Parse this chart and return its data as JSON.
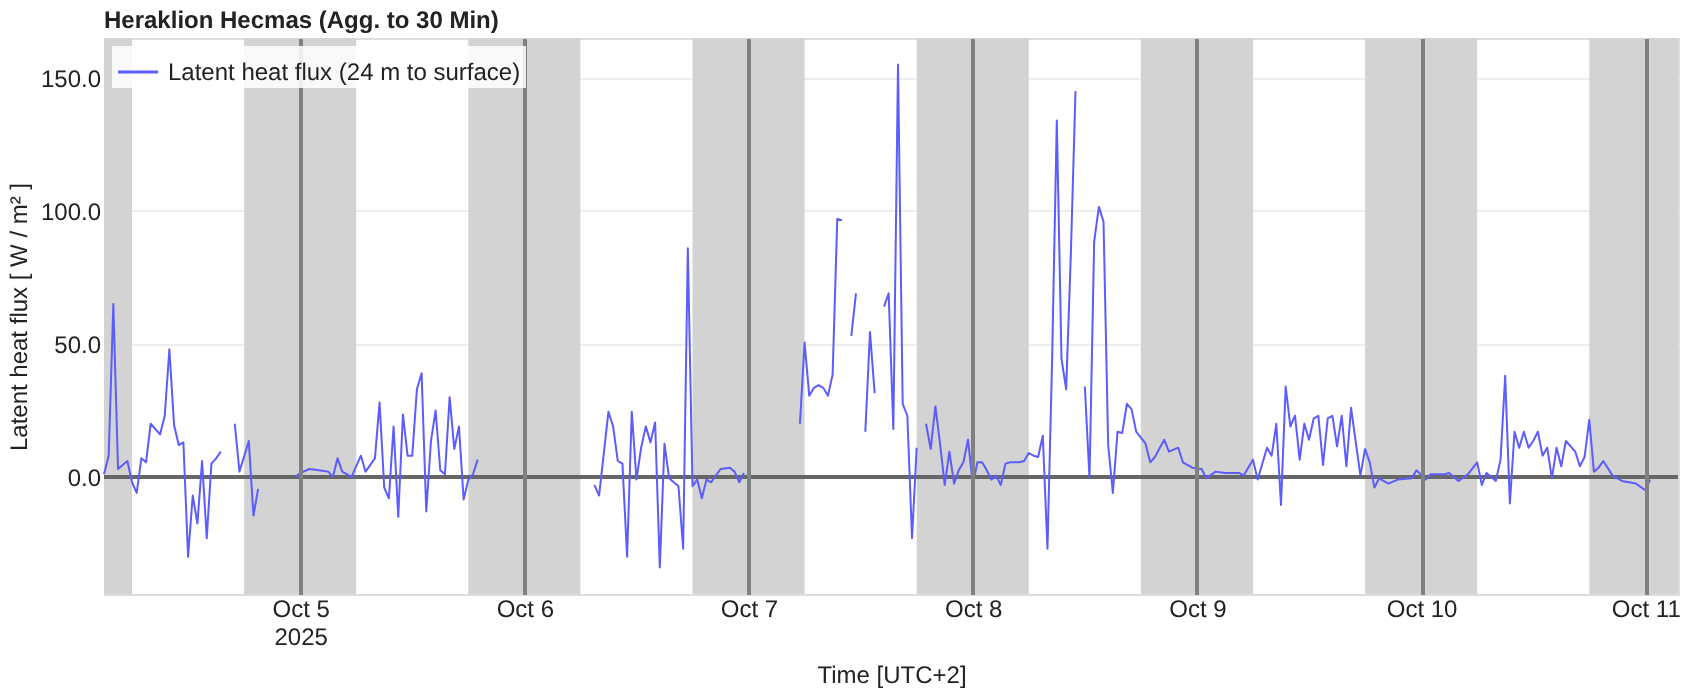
{
  "chart_data": {
    "type": "line",
    "title": "Heraklion Hecmas (Agg. to 30 Min)",
    "xlabel": "Time [UTC+2]",
    "ylabel": "Latent heat flux [ W / m² ]",
    "xlim": [
      "2025-10-04T03:00",
      "2025-10-11T03:30"
    ],
    "xticks": [
      {
        "value": "2025-10-05T00:00",
        "label": "Oct 5\n2025"
      },
      {
        "value": "2025-10-06T00:00",
        "label": "Oct 6"
      },
      {
        "value": "2025-10-07T00:00",
        "label": "Oct 7"
      },
      {
        "value": "2025-10-08T00:00",
        "label": "Oct 8"
      },
      {
        "value": "2025-10-09T00:00",
        "label": "Oct 9"
      },
      {
        "value": "2025-10-10T00:00",
        "label": "Oct 10"
      },
      {
        "value": "2025-10-11T00:00",
        "label": "Oct 11"
      }
    ],
    "ylim": [
      -44,
      165
    ],
    "yticks": [
      {
        "value": 0,
        "label": "0.0"
      },
      {
        "value": 50,
        "label": "50.0"
      },
      {
        "value": 100,
        "label": "100.0"
      },
      {
        "value": 150,
        "label": "150.0"
      }
    ],
    "grid": true,
    "legend": "top left",
    "marker": "none",
    "line_style": "solid",
    "ref_lines": [
      {
        "axis": "y",
        "value": 0,
        "color": "#666666",
        "line_style": "solid"
      }
    ],
    "bands": [
      {
        "axis": "x",
        "from": "2025-10-04T03:00",
        "to": "2025-10-04T06:00",
        "color": "#d3d3d3"
      },
      {
        "axis": "x",
        "from": "2025-10-04T18:00",
        "to": "2025-10-05T06:00",
        "color": "#d3d3d3"
      },
      {
        "axis": "x",
        "from": "2025-10-05T18:00",
        "to": "2025-10-06T06:00",
        "color": "#d3d3d3"
      },
      {
        "axis": "x",
        "from": "2025-10-06T18:00",
        "to": "2025-10-07T06:00",
        "color": "#d3d3d3"
      },
      {
        "axis": "x",
        "from": "2025-10-07T18:00",
        "to": "2025-10-08T06:00",
        "color": "#d3d3d3"
      },
      {
        "axis": "x",
        "from": "2025-10-08T18:00",
        "to": "2025-10-09T06:00",
        "color": "#d3d3d3"
      },
      {
        "axis": "x",
        "from": "2025-10-09T18:00",
        "to": "2025-10-10T06:00",
        "color": "#d3d3d3"
      },
      {
        "axis": "x",
        "from": "2025-10-10T18:00",
        "to": "2025-10-11T03:30",
        "color": "#d3d3d3"
      }
    ],
    "series": [
      {
        "name": "Latent heat flux (24 m to surface)",
        "color": "#5c5cff",
        "x": [
          "2025-10-04T03:00",
          "2025-10-04T03:30",
          "2025-10-04T04:00",
          "2025-10-04T04:30",
          "2025-10-04T05:30",
          "2025-10-04T06:00",
          "2025-10-04T06:30",
          "2025-10-04T07:00",
          "2025-10-04T07:30",
          "2025-10-04T08:00",
          "2025-10-04T09:00",
          "2025-10-04T09:30",
          "2025-10-04T10:00",
          "2025-10-04T10:30",
          "2025-10-04T11:00",
          "2025-10-04T11:30",
          "2025-10-04T12:00",
          "2025-10-04T12:30",
          "2025-10-04T13:00",
          "2025-10-04T13:30",
          "2025-10-04T14:00",
          "2025-10-04T14:30",
          "2025-10-04T15:00",
          "2025-10-04T15:30",
          "2025-10-04T16:15",
          "2025-10-04T17:00",
          "2025-10-04T17:30",
          "2025-10-04T18:30",
          "2025-10-04T19:00",
          "2025-10-04T19:30",
          "2025-10-04T21:30",
          "2025-10-04T23:30",
          "2025-10-05T00:00",
          "2025-10-05T01:00",
          "2025-10-05T02:00",
          "2025-10-05T03:00",
          "2025-10-05T03:30",
          "2025-10-05T04:00",
          "2025-10-05T04:30",
          "2025-10-05T05:30",
          "2025-10-05T06:30",
          "2025-10-05T07:00",
          "2025-10-05T08:00",
          "2025-10-05T08:30",
          "2025-10-05T09:00",
          "2025-10-05T09:30",
          "2025-10-05T10:00",
          "2025-10-05T10:30",
          "2025-10-05T11:00",
          "2025-10-05T11:30",
          "2025-10-05T12:00",
          "2025-10-05T12:30",
          "2025-10-05T13:00",
          "2025-10-05T13:30",
          "2025-10-05T14:00",
          "2025-10-05T14:30",
          "2025-10-05T15:00",
          "2025-10-05T15:30",
          "2025-10-05T16:00",
          "2025-10-05T16:30",
          "2025-10-05T17:00",
          "2025-10-05T17:30",
          "2025-10-05T18:00",
          "2025-10-05T18:30",
          "2025-10-05T19:00",
          "2025-10-06T01:00",
          "2025-10-06T07:30",
          "2025-10-06T08:00",
          "2025-10-06T09:00",
          "2025-10-06T09:30",
          "2025-10-06T10:00",
          "2025-10-06T10:30",
          "2025-10-06T11:00",
          "2025-10-06T11:30",
          "2025-10-06T12:00",
          "2025-10-06T12:30",
          "2025-10-06T13:00",
          "2025-10-06T13:30",
          "2025-10-06T14:00",
          "2025-10-06T14:30",
          "2025-10-06T15:00",
          "2025-10-06T15:30",
          "2025-10-06T16:30",
          "2025-10-06T17:00",
          "2025-10-06T17:30",
          "2025-10-06T18:00",
          "2025-10-06T18:30",
          "2025-10-06T19:00",
          "2025-10-06T19:30",
          "2025-10-06T20:00",
          "2025-10-06T21:00",
          "2025-10-06T22:00",
          "2025-10-06T22:30",
          "2025-10-06T23:00",
          "2025-10-06T23:30",
          "2025-10-07T02:30",
          "2025-10-07T05:30",
          "2025-10-07T06:00",
          "2025-10-07T06:30",
          "2025-10-07T07:00",
          "2025-10-07T07:30",
          "2025-10-07T08:00",
          "2025-10-07T08:30",
          "2025-10-07T09:00",
          "2025-10-07T09:30",
          "2025-10-07T10:00",
          "2025-10-07T10:30",
          "2025-10-07T11:00",
          "2025-10-07T11:30",
          "2025-10-07T12:00",
          "2025-10-07T12:30",
          "2025-10-07T13:00",
          "2025-10-07T13:30",
          "2025-10-07T14:00",
          "2025-10-07T14:30",
          "2025-10-07T15:00",
          "2025-10-07T15:30",
          "2025-10-07T16:00",
          "2025-10-07T16:30",
          "2025-10-07T17:00",
          "2025-10-07T17:30",
          "2025-10-07T18:00",
          "2025-10-07T18:30",
          "2025-10-07T19:00",
          "2025-10-07T19:30",
          "2025-10-07T20:00",
          "2025-10-07T20:30",
          "2025-10-07T21:00",
          "2025-10-07T21:30",
          "2025-10-07T22:00",
          "2025-10-07T22:30",
          "2025-10-07T23:00",
          "2025-10-07T23:30",
          "2025-10-08T00:00",
          "2025-10-08T00:30",
          "2025-10-08T01:00",
          "2025-10-08T01:30",
          "2025-10-08T02:00",
          "2025-10-08T02:30",
          "2025-10-08T03:00",
          "2025-10-08T03:30",
          "2025-10-08T04:00",
          "2025-10-08T05:00",
          "2025-10-08T05:30",
          "2025-10-08T06:00",
          "2025-10-08T06:30",
          "2025-10-08T07:00",
          "2025-10-08T07:30",
          "2025-10-08T08:00",
          "2025-10-08T08:30",
          "2025-10-08T09:00",
          "2025-10-08T09:30",
          "2025-10-08T10:00",
          "2025-10-08T10:30",
          "2025-10-08T11:00",
          "2025-10-08T11:30",
          "2025-10-08T12:00",
          "2025-10-08T12:30",
          "2025-10-08T13:00",
          "2025-10-08T13:30",
          "2025-10-08T14:00",
          "2025-10-08T14:30",
          "2025-10-08T15:00",
          "2025-10-08T15:30",
          "2025-10-08T16:00",
          "2025-10-08T16:30",
          "2025-10-08T17:00",
          "2025-10-08T17:30",
          "2025-10-08T18:30",
          "2025-10-08T19:00",
          "2025-10-08T19:30",
          "2025-10-08T20:30",
          "2025-10-08T21:00",
          "2025-10-08T22:00",
          "2025-10-08T22:30",
          "2025-10-08T23:30",
          "2025-10-09T00:30",
          "2025-10-09T01:00",
          "2025-10-09T02:00",
          "2025-10-09T03:00",
          "2025-10-09T04:30",
          "2025-10-09T05:00",
          "2025-10-09T06:00",
          "2025-10-09T06:30",
          "2025-10-09T07:30",
          "2025-10-09T08:00",
          "2025-10-09T08:30",
          "2025-10-09T09:00",
          "2025-10-09T09:30",
          "2025-10-09T10:00",
          "2025-10-09T10:30",
          "2025-10-09T11:00",
          "2025-10-09T11:30",
          "2025-10-09T12:00",
          "2025-10-09T12:30",
          "2025-10-09T13:00",
          "2025-10-09T13:30",
          "2025-10-09T14:00",
          "2025-10-09T14:30",
          "2025-10-09T15:00",
          "2025-10-09T15:30",
          "2025-10-09T16:00",
          "2025-10-09T16:30",
          "2025-10-09T17:30",
          "2025-10-09T18:00",
          "2025-10-09T18:30",
          "2025-10-09T19:00",
          "2025-10-09T19:30",
          "2025-10-09T20:30",
          "2025-10-09T21:30",
          "2025-10-09T23:00",
          "2025-10-09T23:30",
          "2025-10-10T00:30",
          "2025-10-10T01:00",
          "2025-10-10T02:30",
          "2025-10-10T03:00",
          "2025-10-10T04:00",
          "2025-10-10T05:00",
          "2025-10-10T06:00",
          "2025-10-10T06:30",
          "2025-10-10T07:00",
          "2025-10-10T08:00",
          "2025-10-10T08:30",
          "2025-10-10T09:00",
          "2025-10-10T09:30",
          "2025-10-10T10:00",
          "2025-10-10T10:30",
          "2025-10-10T11:00",
          "2025-10-10T11:30",
          "2025-10-10T12:00",
          "2025-10-10T12:30",
          "2025-10-10T13:00",
          "2025-10-10T13:30",
          "2025-10-10T14:00",
          "2025-10-10T14:30",
          "2025-10-10T15:00",
          "2025-10-10T15:30",
          "2025-10-10T16:30",
          "2025-10-10T17:00",
          "2025-10-10T17:30",
          "2025-10-10T18:00",
          "2025-10-10T18:30",
          "2025-10-10T19:00",
          "2025-10-10T19:30",
          "2025-10-10T20:30",
          "2025-10-10T21:30",
          "2025-10-10T23:00",
          "2025-10-11T00:00",
          "2025-10-11T00:30"
        ],
        "values": [
          1,
          8,
          65,
          3,
          6,
          -2,
          -6,
          7,
          5.5,
          20,
          16,
          23,
          48,
          19.5,
          12,
          13,
          -30,
          -7,
          -17.5,
          6,
          -23,
          5,
          7,
          9.5,
          null,
          20,
          2,
          13.5,
          -14.5,
          -4.5,
          null,
          0,
          1.5,
          3,
          2.5,
          2,
          0,
          7,
          2,
          0,
          8,
          2,
          7,
          28,
          -4,
          -8,
          19,
          -15,
          23.5,
          8,
          8,
          33,
          39,
          -13,
          13.5,
          25,
          2.5,
          1,
          30,
          10.5,
          19,
          -8.5,
          -1,
          1,
          6.5,
          null,
          -3,
          -7,
          24.5,
          19,
          6,
          5,
          -30,
          24.5,
          -1,
          11,
          19,
          13,
          20.5,
          -34,
          12.5,
          -0.5,
          -3.5,
          -27,
          86,
          -3.5,
          -1,
          -8,
          -1,
          -2,
          3,
          3.5,
          2,
          -2,
          1.5,
          null,
          20,
          50.5,
          30.5,
          33.5,
          34.5,
          33.5,
          30.5,
          38.5,
          97,
          96.5,
          null,
          53,
          69,
          null,
          17,
          54.5,
          31.5,
          null,
          64,
          69,
          18,
          155,
          27.5,
          23,
          -23,
          11,
          null,
          20,
          10.5,
          26.5,
          12.5,
          -3,
          9.5,
          -2.5,
          2.5,
          5.5,
          14,
          -3,
          5.5,
          5.5,
          2.5,
          -1,
          0.5,
          -3,
          5,
          5.5,
          5.5,
          6,
          9,
          8,
          7.5,
          15.5,
          -27,
          44.5,
          134,
          44.5,
          33,
          83.5,
          145,
          null,
          34,
          -0.5,
          88.5,
          101.5,
          96,
          12,
          -6,
          17,
          16.5,
          27.5,
          25.5,
          17,
          12.5,
          5.5,
          7.5,
          14,
          9.5,
          11,
          5.5,
          3.5,
          3,
          -0.5,
          2,
          1.5,
          1.5,
          0.5,
          6.5,
          -1,
          11,
          8,
          20,
          -10.5,
          34,
          19,
          23,
          6.5,
          20,
          14,
          22,
          23,
          4.5,
          22,
          23,
          11.5,
          23,
          4,
          26,
          0.5,
          10.5,
          5.5,
          -4,
          -0.5,
          -2.5,
          -1,
          -0.5,
          2.5,
          -1,
          1,
          1,
          1.5,
          -1.5,
          1,
          5.5,
          -3,
          1.5,
          -1.5,
          6.5,
          38,
          -10,
          17,
          11,
          17,
          11,
          13.5,
          17,
          8,
          11,
          -0.5,
          11,
          4,
          13.5,
          9.5,
          4,
          7.5,
          21.5,
          2,
          3.5,
          6,
          0.5,
          -1.5,
          -2.5,
          -5,
          -1
        ]
      }
    ]
  }
}
